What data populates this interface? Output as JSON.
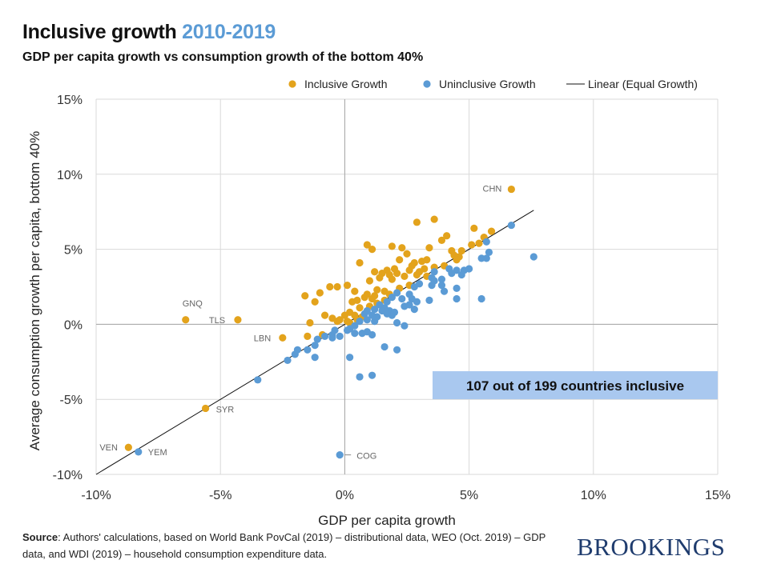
{
  "header": {
    "title_main": "Inclusive growth ",
    "title_accent": "2010-2019",
    "subtitle": "GDP per capita growth vs consumption growth of the bottom 40%"
  },
  "colors": {
    "inclusive": "#e3a31c",
    "uninclusive": "#5b9bd5",
    "callout_bg": "#a9c8ef",
    "brand": "#1f3c6e"
  },
  "chart_data": {
    "type": "scatter",
    "title": "Inclusive growth 2010-2019",
    "subtitle": "GDP per capita growth vs consumption growth of the bottom 40%",
    "xlabel": "GDP per capita growth",
    "ylabel": "Average consumption growth per capita, bottom 40%",
    "xlim": [
      -10,
      15
    ],
    "ylim": [
      -10,
      15
    ],
    "xticks": [
      -10,
      -5,
      0,
      5,
      10,
      15
    ],
    "yticks": [
      -10,
      -5,
      0,
      5,
      10,
      15
    ],
    "xtick_labels": [
      "-10%",
      "-5%",
      "0%",
      "5%",
      "10%",
      "15%"
    ],
    "ytick_labels": [
      "-10%",
      "-5%",
      "0%",
      "5%",
      "10%",
      "15%"
    ],
    "grid": true,
    "legend_position": "top-right",
    "legend": [
      "Inclusive Growth",
      "Uninclusive Growth",
      "Linear (Equal Growth)"
    ],
    "line": {
      "name": "Linear (Equal Growth)",
      "x": [
        -10,
        7.6
      ],
      "y": [
        -10,
        7.6
      ]
    },
    "callout": "107 out of 199 countries inclusive",
    "series": [
      {
        "name": "Inclusive Growth",
        "points": [
          [
            6.7,
            9.0
          ],
          [
            -6.4,
            0.3
          ],
          [
            -4.3,
            0.3
          ],
          [
            -2.5,
            -0.9
          ],
          [
            -5.6,
            -5.6
          ],
          [
            -8.7,
            -8.2
          ],
          [
            3.6,
            7.0
          ],
          [
            2.9,
            6.8
          ],
          [
            5.2,
            6.4
          ],
          [
            5.9,
            6.2
          ],
          [
            5.6,
            5.8
          ],
          [
            4.1,
            5.9
          ],
          [
            3.9,
            5.6
          ],
          [
            0.9,
            5.3
          ],
          [
            1.1,
            5.0
          ],
          [
            1.9,
            5.2
          ],
          [
            2.3,
            5.1
          ],
          [
            3.4,
            5.1
          ],
          [
            5.1,
            5.3
          ],
          [
            4.7,
            4.9
          ],
          [
            4.3,
            4.9
          ],
          [
            4.4,
            4.6
          ],
          [
            4.6,
            4.5
          ],
          [
            0.6,
            4.1
          ],
          [
            2.2,
            4.3
          ],
          [
            2.5,
            4.7
          ],
          [
            2.8,
            4.1
          ],
          [
            3.1,
            4.2
          ],
          [
            3.3,
            4.3
          ],
          [
            3.6,
            3.8
          ],
          [
            2.0,
            3.7
          ],
          [
            1.7,
            3.6
          ],
          [
            1.2,
            3.5
          ],
          [
            1.5,
            3.4
          ],
          [
            1.8,
            3.3
          ],
          [
            2.1,
            3.4
          ],
          [
            2.4,
            3.2
          ],
          [
            2.6,
            3.6
          ],
          [
            2.7,
            3.9
          ],
          [
            3.0,
            3.5
          ],
          [
            3.2,
            3.7
          ],
          [
            2.9,
            3.3
          ],
          [
            1.9,
            3.0
          ],
          [
            1.4,
            3.1
          ],
          [
            1.0,
            2.9
          ],
          [
            0.1,
            2.6
          ],
          [
            -0.6,
            2.5
          ],
          [
            -0.3,
            2.5
          ],
          [
            -1.0,
            2.1
          ],
          [
            -1.6,
            1.9
          ],
          [
            -1.2,
            1.5
          ],
          [
            0.4,
            2.2
          ],
          [
            0.9,
            2.0
          ],
          [
            1.3,
            2.3
          ],
          [
            1.6,
            2.2
          ],
          [
            1.8,
            2.0
          ],
          [
            1.1,
            1.7
          ],
          [
            0.8,
            1.8
          ],
          [
            0.5,
            1.6
          ],
          [
            0.3,
            1.5
          ],
          [
            1.0,
            1.2
          ],
          [
            1.3,
            1.4
          ],
          [
            1.6,
            1.6
          ],
          [
            0.6,
            1.1
          ],
          [
            0.2,
            0.8
          ],
          [
            0.0,
            0.6
          ],
          [
            -0.5,
            0.4
          ],
          [
            -0.2,
            0.3
          ],
          [
            0.1,
            0.2
          ],
          [
            0.4,
            0.6
          ],
          [
            0.7,
            0.5
          ],
          [
            -0.8,
            0.6
          ],
          [
            -1.4,
            0.1
          ],
          [
            -0.9,
            -0.7
          ],
          [
            -1.5,
            -0.8
          ],
          [
            0.2,
            0.1
          ],
          [
            0.5,
            0.3
          ],
          [
            -0.3,
            0.2
          ],
          [
            1.2,
            1.9
          ],
          [
            2.2,
            2.4
          ],
          [
            2.6,
            2.6
          ],
          [
            3.3,
            3.2
          ],
          [
            4.0,
            3.9
          ],
          [
            4.5,
            4.3
          ],
          [
            5.4,
            5.4
          ]
        ]
      },
      {
        "name": "Uninclusive Growth",
        "points": [
          [
            6.7,
            6.6
          ],
          [
            7.6,
            4.5
          ],
          [
            5.7,
            5.5
          ],
          [
            5.8,
            4.8
          ],
          [
            5.5,
            4.4
          ],
          [
            5.7,
            4.4
          ],
          [
            5.5,
            1.7
          ],
          [
            4.8,
            3.6
          ],
          [
            4.7,
            3.3
          ],
          [
            4.5,
            3.6
          ],
          [
            4.2,
            3.7
          ],
          [
            4.5,
            2.4
          ],
          [
            4.5,
            1.7
          ],
          [
            3.9,
            3.0
          ],
          [
            3.6,
            3.5
          ],
          [
            3.5,
            3.1
          ],
          [
            3.9,
            2.6
          ],
          [
            4.0,
            2.2
          ],
          [
            3.5,
            2.6
          ],
          [
            3.0,
            2.7
          ],
          [
            2.8,
            2.5
          ],
          [
            2.6,
            2.0
          ],
          [
            2.7,
            1.7
          ],
          [
            2.9,
            1.5
          ],
          [
            2.6,
            1.3
          ],
          [
            2.3,
            1.7
          ],
          [
            2.4,
            1.2
          ],
          [
            3.4,
            1.6
          ],
          [
            2.1,
            2.1
          ],
          [
            1.9,
            1.8
          ],
          [
            1.7,
            1.5
          ],
          [
            1.6,
            1.1
          ],
          [
            1.8,
            0.9
          ],
          [
            2.0,
            0.8
          ],
          [
            1.9,
            0.6
          ],
          [
            1.7,
            0.7
          ],
          [
            1.4,
            1.3
          ],
          [
            1.2,
            1.0
          ],
          [
            1.1,
            0.6
          ],
          [
            0.9,
            0.9
          ],
          [
            0.8,
            0.7
          ],
          [
            0.9,
            0.3
          ],
          [
            1.2,
            0.2
          ],
          [
            1.3,
            0.5
          ],
          [
            2.4,
            -0.1
          ],
          [
            2.1,
            0.1
          ],
          [
            0.6,
            0.2
          ],
          [
            0.4,
            -0.1
          ],
          [
            0.2,
            -0.3
          ],
          [
            0.1,
            -0.4
          ],
          [
            -0.4,
            -0.4
          ],
          [
            -0.5,
            -0.7
          ],
          [
            -0.8,
            -0.8
          ],
          [
            -1.1,
            -1.0
          ],
          [
            -1.2,
            -1.4
          ],
          [
            -1.5,
            -1.7
          ],
          [
            -1.9,
            -1.7
          ],
          [
            -2.0,
            -2.0
          ],
          [
            -2.3,
            -2.4
          ],
          [
            -1.2,
            -2.2
          ],
          [
            -3.5,
            -3.7
          ],
          [
            -8.3,
            -8.5
          ],
          [
            -0.2,
            -8.7
          ],
          [
            0.6,
            -3.5
          ],
          [
            1.1,
            -3.4
          ],
          [
            0.2,
            -2.2
          ],
          [
            1.6,
            -1.5
          ],
          [
            2.1,
            -1.7
          ],
          [
            0.9,
            -0.5
          ],
          [
            1.1,
            -0.7
          ],
          [
            0.7,
            -0.6
          ],
          [
            0.4,
            -0.6
          ],
          [
            -0.2,
            -0.8
          ],
          [
            -0.5,
            -0.9
          ],
          [
            1.5,
            0.9
          ],
          [
            2.8,
            1.0
          ],
          [
            3.6,
            2.9
          ],
          [
            4.3,
            3.4
          ],
          [
            5.0,
            3.7
          ]
        ]
      }
    ],
    "annotations": [
      {
        "text": "CHN",
        "x": 6.7,
        "y": 9.0
      },
      {
        "text": "GNQ",
        "x": -6.4,
        "y": 0.3
      },
      {
        "text": "TLS",
        "x": -4.3,
        "y": 0.3
      },
      {
        "text": "LBN",
        "x": -2.5,
        "y": -0.9
      },
      {
        "text": "SYR",
        "x": -5.6,
        "y": -5.6
      },
      {
        "text": "VEN",
        "x": -8.7,
        "y": -8.2
      },
      {
        "text": "YEM",
        "x": -8.3,
        "y": -8.5
      },
      {
        "text": "COG",
        "x": -0.2,
        "y": -8.7
      }
    ]
  },
  "footer": {
    "source_label": "Source",
    "source_text": ": Authors' calculations, based on World Bank PovCal (2019) – distributional data, WEO (Oct. 2019) – GDP data, and WDI (2019) – household consumption expenditure data.",
    "brand": "BROOKINGS"
  }
}
